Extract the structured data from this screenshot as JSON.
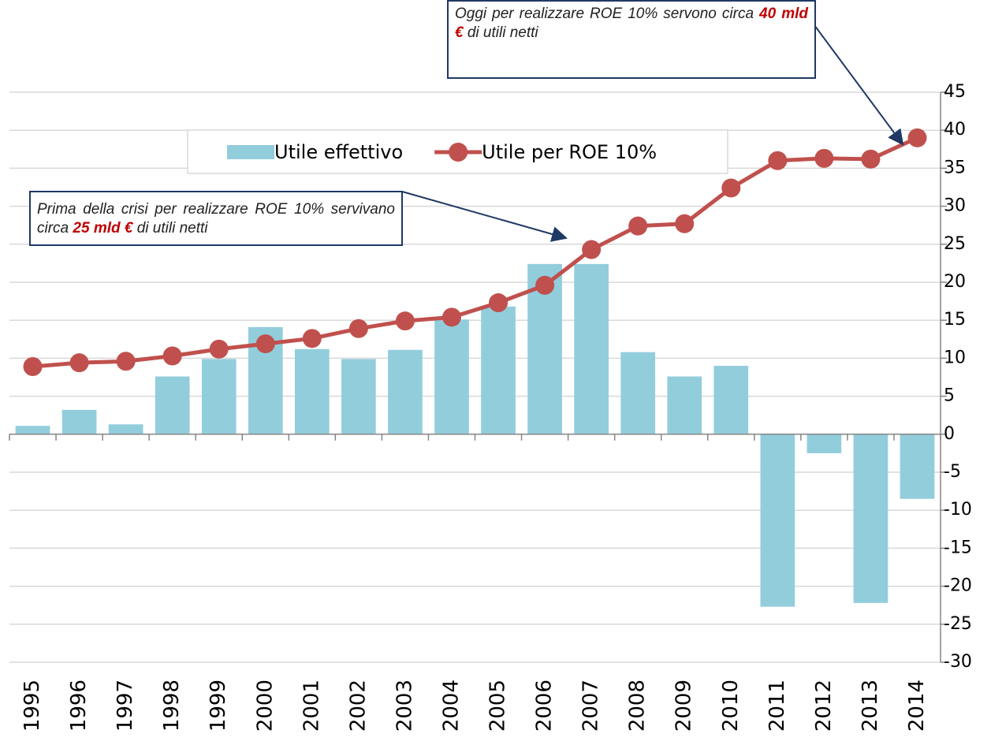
{
  "chart_data": {
    "type": "bar",
    "categories": [
      "1995",
      "1996",
      "1997",
      "1998",
      "1999",
      "2000",
      "2001",
      "2002",
      "2003",
      "2004",
      "2005",
      "2006",
      "2007",
      "2008",
      "2009",
      "2010",
      "2011",
      "2012",
      "2013",
      "2014"
    ],
    "series": [
      {
        "name": "Utile effettivo",
        "type": "bar",
        "color": "#92cddc",
        "values": [
          1.1,
          3.2,
          1.3,
          7.6,
          9.9,
          14.1,
          11.2,
          9.9,
          11.1,
          15.1,
          16.8,
          22.4,
          22.4,
          10.8,
          7.6,
          9.0,
          -22.7,
          -2.5,
          -22.2,
          -8.5
        ]
      },
      {
        "name": "Utile per ROE 10%",
        "type": "line",
        "color": "#c0504d",
        "values": [
          8.9,
          9.4,
          9.6,
          10.3,
          11.2,
          11.9,
          12.6,
          13.9,
          14.9,
          15.4,
          17.3,
          19.6,
          24.3,
          27.4,
          27.7,
          32.4,
          36.0,
          36.3,
          36.2,
          39.0
        ]
      }
    ],
    "ylim": [
      -30,
      45
    ],
    "yticks": [
      -30,
      -25,
      -20,
      -15,
      -10,
      -5,
      0,
      5,
      10,
      15,
      20,
      25,
      30,
      35,
      40,
      45
    ],
    "y_axis_position": "right",
    "grid": true,
    "legend": "top",
    "annotations": [
      [
        "Oggi per realizzare ROE  10% servono circa ",
        "40 mld €",
        " di utili netti"
      ],
      [
        "Prima della crisi per realizzare ROE 10% servivano circa ",
        "25 mld €",
        " di utili netti"
      ]
    ]
  }
}
